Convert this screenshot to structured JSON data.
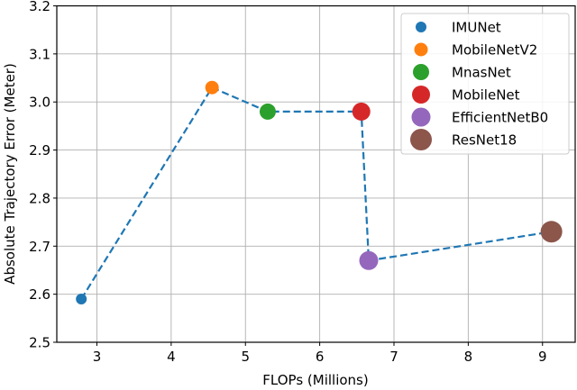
{
  "chart_data": {
    "type": "scatter",
    "title": "",
    "xlabel": "FLOPs (Millions)",
    "ylabel": "Absolute Trajectory Error (Meter)",
    "xlim": [
      2.46,
      9.44
    ],
    "ylim": [
      2.5,
      3.2
    ],
    "xticks": [
      3,
      4,
      5,
      6,
      7,
      8,
      9
    ],
    "yticks": [
      2.5,
      2.6,
      2.7,
      2.8,
      2.9,
      3.0,
      3.1,
      3.2
    ],
    "ytick_labels": [
      "2.5",
      "2.6",
      "2.7",
      "2.8",
      "2.9",
      "3.0",
      "3.1",
      "3.2"
    ],
    "grid": true,
    "legend_position": "upper right",
    "connector": {
      "style": "dashed",
      "color": "#1f77b4"
    },
    "series": [
      {
        "name": "IMUNet",
        "x": 2.79,
        "y": 2.59,
        "color": "#1f77b4",
        "size": 6
      },
      {
        "name": "MobileNetV2",
        "x": 4.55,
        "y": 3.03,
        "color": "#ff7f0e",
        "size": 7.5
      },
      {
        "name": "MnasNet",
        "x": 5.3,
        "y": 2.98,
        "color": "#2ca02c",
        "size": 9
      },
      {
        "name": "MobileNet",
        "x": 6.56,
        "y": 2.98,
        "color": "#d62728",
        "size": 10
      },
      {
        "name": "EfficientNetB0",
        "x": 6.66,
        "y": 2.67,
        "color": "#9467bd",
        "size": 10.5
      },
      {
        "name": "ResNet18",
        "x": 9.12,
        "y": 2.73,
        "color": "#8c564b",
        "size": 12
      }
    ]
  }
}
